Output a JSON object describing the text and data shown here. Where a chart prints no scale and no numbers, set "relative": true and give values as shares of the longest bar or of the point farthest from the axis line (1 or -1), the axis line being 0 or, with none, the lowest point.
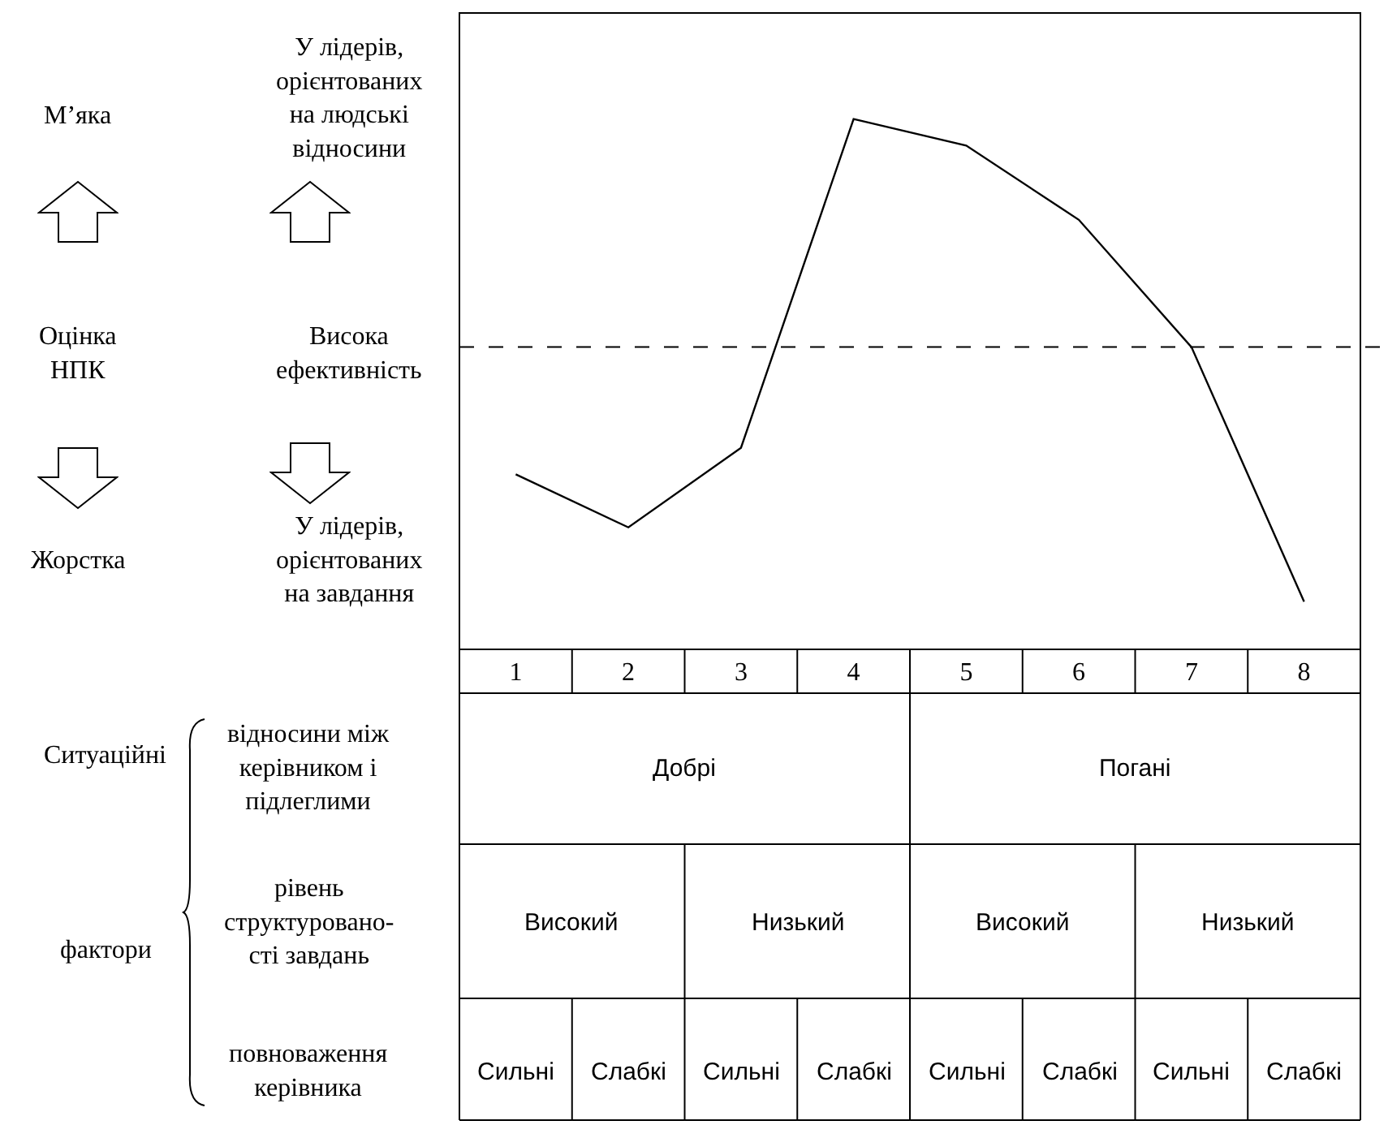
{
  "chart_data": {
    "type": "line",
    "relative": true,
    "categories": [
      "1",
      "2",
      "3",
      "4",
      "5",
      "6",
      "7",
      "8"
    ],
    "series": [
      {
        "color": "#000000",
        "values": [
          0.33,
          0.23,
          0.38,
          1,
          0.95,
          0.81,
          0.57,
          0.09
        ]
      }
    ],
    "marker": "none",
    "line_style": "solid",
    "grid": false,
    "legend": false,
    "ref_lines": [
      {
        "axis": "y",
        "value": 0.57,
        "line_style": "dashed",
        "color": "#000000"
      }
    ],
    "annotations": [
      "М’яка",
      "Оцінка\nНПК",
      "Жорстка",
      "У лідерів,\nорієнтованих\nна людські\nвідносини",
      "Висока\nефективність",
      "У лідерів,\nорієнтованих\nна завдання",
      "Ситуаційні",
      "фактори",
      "відносини між\nкерівником і\nпідлеглими",
      "рівень\nструктуровано-\nсті завдань",
      "повноваження\nкерівника",
      "Добрі",
      "Погані",
      "Високий",
      "Низький",
      "Високий",
      "Низький",
      "Сильні",
      "Слабкі",
      "Сильні",
      "Слабкі",
      "Сильні",
      "Слабкі",
      "Сильні",
      "Слабкі"
    ]
  }
}
